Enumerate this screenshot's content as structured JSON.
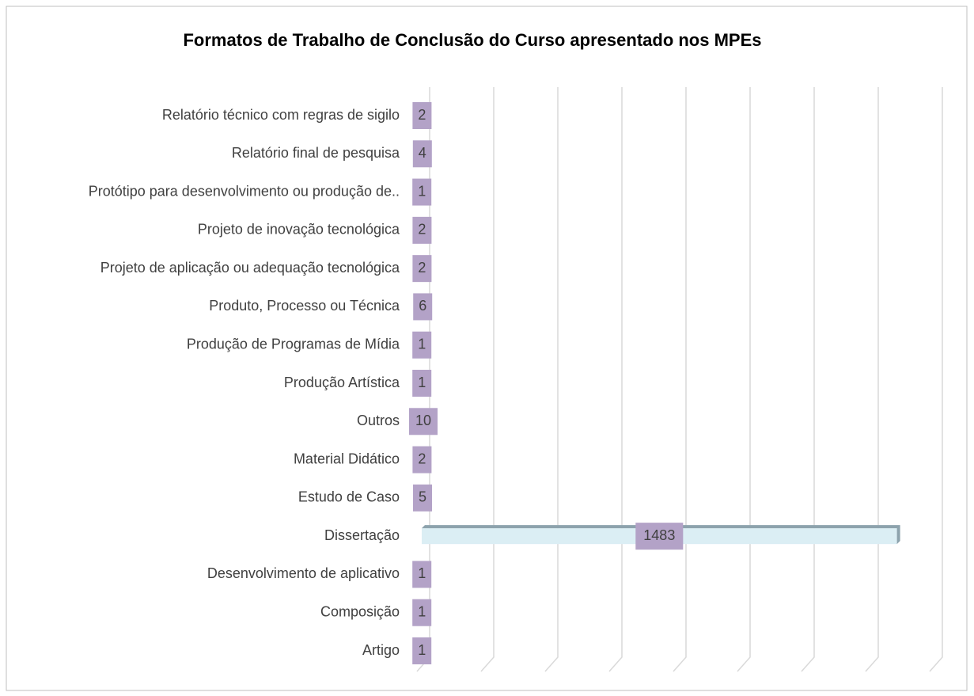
{
  "chart_data": {
    "type": "bar",
    "orientation": "horizontal",
    "title": "Formatos de  Trabalho de Conclusão do Curso apresentado nos MPEs",
    "categories": [
      "Artigo",
      "Composição",
      "Desenvolvimento de aplicativo",
      "Dissertação",
      "Estudo de Caso",
      "Material Didático",
      "Outros",
      "Produção Artística",
      "Produção de Programas de Mídia",
      "Produto, Processo ou Técnica",
      "Projeto de aplicação ou adequação tecnológica",
      "Projeto de inovação tecnológica",
      "Protótipo para desenvolvimento ou produção de..",
      "Relatório final de pesquisa",
      "Relatório técnico com regras de sigilo"
    ],
    "values": [
      1,
      1,
      1,
      1483,
      5,
      2,
      10,
      1,
      1,
      6,
      2,
      2,
      1,
      4,
      2
    ],
    "color": "#dbeef4",
    "label_color": "#b3a2c7",
    "xlim": [
      0,
      1600
    ],
    "xticks": [
      0,
      200,
      400,
      600,
      800,
      1000,
      1200,
      1400,
      1600
    ],
    "grid": true
  }
}
